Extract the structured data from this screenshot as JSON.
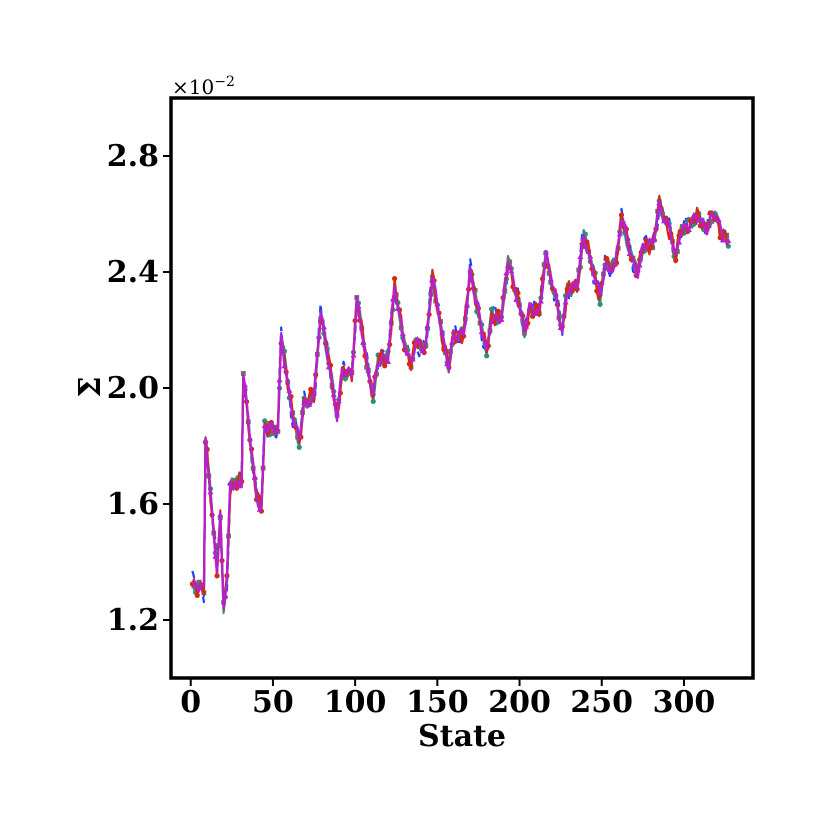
{
  "chart_data": {
    "type": "line",
    "xlabel": "State",
    "ylabel": "Σ",
    "y_scale_text": "×10",
    "y_scale_exponent": "−2",
    "xlim": [
      -12,
      342
    ],
    "ylim": [
      1.0,
      3.0
    ],
    "x_ticks": [
      0,
      50,
      100,
      150,
      200,
      250,
      300
    ],
    "x_tick_labels": [
      "0",
      "50",
      "100",
      "150",
      "200",
      "250",
      "300"
    ],
    "y_ticks": [
      1.2,
      1.6,
      2.0,
      2.4,
      2.8
    ],
    "y_tick_labels": [
      "1.2",
      "1.6",
      "2.0",
      "2.4",
      "2.8"
    ],
    "grid": false,
    "x_range": [
      1,
      327
    ],
    "baseline": [
      [
        1,
        1.33
      ],
      [
        8,
        1.3
      ],
      [
        9,
        1.82
      ],
      [
        16,
        1.38
      ],
      [
        18,
        1.55
      ],
      [
        20,
        1.25
      ],
      [
        22,
        1.33
      ],
      [
        24,
        1.66
      ],
      [
        31,
        1.68
      ],
      [
        32,
        2.05
      ],
      [
        40,
        1.62
      ],
      [
        43,
        1.59
      ],
      [
        45,
        1.87
      ],
      [
        53,
        1.85
      ],
      [
        55,
        2.18
      ],
      [
        62,
        1.9
      ],
      [
        66,
        1.82
      ],
      [
        69,
        1.95
      ],
      [
        75,
        1.97
      ],
      [
        79,
        2.26
      ],
      [
        86,
        2.02
      ],
      [
        89,
        1.9
      ],
      [
        92,
        2.05
      ],
      [
        98,
        2.05
      ],
      [
        101,
        2.31
      ],
      [
        108,
        2.05
      ],
      [
        111,
        1.98
      ],
      [
        114,
        2.1
      ],
      [
        120,
        2.1
      ],
      [
        124,
        2.35
      ],
      [
        131,
        2.13
      ],
      [
        134,
        2.08
      ],
      [
        137,
        2.15
      ],
      [
        143,
        2.15
      ],
      [
        147,
        2.38
      ],
      [
        154,
        2.15
      ],
      [
        157,
        2.08
      ],
      [
        160,
        2.18
      ],
      [
        166,
        2.18
      ],
      [
        170,
        2.41
      ],
      [
        177,
        2.2
      ],
      [
        180,
        2.12
      ],
      [
        183,
        2.25
      ],
      [
        189,
        2.24
      ],
      [
        193,
        2.44
      ],
      [
        200,
        2.28
      ],
      [
        203,
        2.2
      ],
      [
        206,
        2.27
      ],
      [
        212,
        2.26
      ],
      [
        216,
        2.46
      ],
      [
        223,
        2.28
      ],
      [
        226,
        2.2
      ],
      [
        229,
        2.34
      ],
      [
        235,
        2.35
      ],
      [
        239,
        2.53
      ],
      [
        246,
        2.38
      ],
      [
        249,
        2.31
      ],
      [
        252,
        2.42
      ],
      [
        258,
        2.42
      ],
      [
        262,
        2.58
      ],
      [
        269,
        2.44
      ],
      [
        272,
        2.4
      ],
      [
        275,
        2.48
      ],
      [
        281,
        2.5
      ],
      [
        285,
        2.63
      ],
      [
        292,
        2.53
      ],
      [
        295,
        2.45
      ],
      [
        298,
        2.55
      ],
      [
        305,
        2.56
      ],
      [
        308,
        2.6
      ],
      [
        314,
        2.55
      ],
      [
        318,
        2.6
      ],
      [
        322,
        2.55
      ],
      [
        327,
        2.5
      ]
    ],
    "series": [
      {
        "color": "#1f3fff",
        "dash": "7,4",
        "marker": "none",
        "amp": 0.028,
        "freq": 1.3,
        "phase": 0.2
      },
      {
        "color": "#2a8f7f",
        "dash": "",
        "marker": "circle",
        "amp": 0.018,
        "freq": 1.1,
        "phase": 1.7
      },
      {
        "color": "#6e6e6e",
        "dash": "",
        "marker": "square",
        "amp": 0.012,
        "freq": 0.9,
        "phase": 3.1
      },
      {
        "color": "#d42a10",
        "dash": "",
        "marker": "circle",
        "amp": 0.022,
        "freq": 1.6,
        "phase": 4.4
      },
      {
        "color": "#b81fd0",
        "dash": "",
        "marker": "triangle",
        "amp": 0.016,
        "freq": 1.2,
        "phase": 5.3
      }
    ]
  }
}
